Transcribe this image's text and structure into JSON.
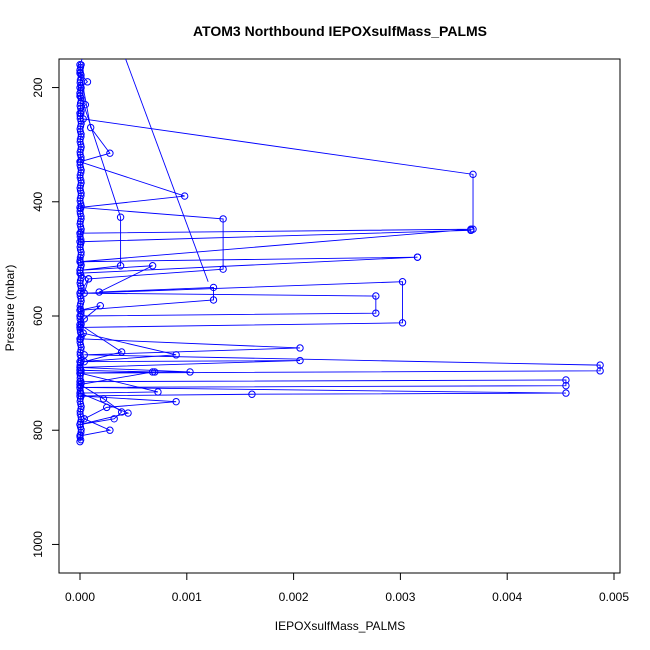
{
  "chart_data": {
    "type": "line",
    "title": "ATOM3 Northbound IEPOXsulfMass_PALMS",
    "xlabel": "IEPOXsulfMass_PALMS",
    "ylabel": "Pressure (mbar)",
    "xlim": [
      0,
      0.005
    ],
    "ylim": [
      150,
      1050
    ],
    "y_reversed": true,
    "x_ticks": [
      0.0,
      0.001,
      0.002,
      0.003,
      0.004,
      0.005
    ],
    "x_tick_labels": [
      "0.000",
      "0.001",
      "0.002",
      "0.003",
      "0.004",
      "0.005"
    ],
    "y_ticks": [
      200,
      400,
      600,
      800,
      1000
    ],
    "y_tick_labels": [
      "200",
      "400",
      "600",
      "800",
      "1000"
    ],
    "grid": false,
    "series": [
      {
        "color": "#0000ff",
        "marker": "open-circle",
        "points": [
          [
            0.0001,
            110
          ],
          [
            0,
            160
          ],
          [
            0,
            175
          ],
          [
            7e-05,
            190
          ],
          [
            0,
            200
          ],
          [
            0,
            215
          ],
          [
            5e-05,
            230
          ],
          [
            0,
            245
          ],
          [
            3e-05,
            255
          ],
          [
            0.00368,
            352
          ],
          [
            0.00368,
            448
          ],
          [
            0,
            455
          ],
          [
            0,
            470
          ],
          [
            0.00366,
            450
          ],
          [
            0.00366,
            448
          ],
          [
            0,
            505
          ],
          [
            0.00316,
            497
          ],
          [
            0.00316,
            497
          ],
          [
            0,
            525
          ],
          [
            8e-05,
            535
          ],
          [
            4e-05,
            560
          ],
          [
            0.00302,
            540
          ],
          [
            0.00302,
            612
          ],
          [
            0,
            620
          ],
          [
            0,
            640
          ],
          [
            0.00206,
            656
          ],
          [
            4e-05,
            668
          ],
          [
            0.00487,
            686
          ],
          [
            0.00487,
            696
          ],
          [
            0,
            700
          ],
          [
            0,
            715
          ],
          [
            0.00455,
            712
          ],
          [
            0.00455,
            722
          ],
          [
            0,
            725
          ],
          [
            0.00455,
            735
          ],
          [
            0.00161,
            737
          ],
          [
            0,
            740
          ],
          [
            0.0009,
            750
          ],
          [
            0.00025,
            760
          ],
          [
            4e-05,
            780
          ],
          [
            0.00028,
            800
          ],
          [
            0,
            810
          ],
          [
            0,
            820
          ]
        ]
      },
      {
        "color": "#0000ff",
        "marker": "open-circle",
        "points": [
          [
            0,
            170
          ],
          [
            0.0001,
            270
          ],
          [
            0.00028,
            315
          ],
          [
            0,
            330
          ],
          [
            0.00098,
            390
          ],
          [
            0,
            410
          ],
          [
            0.00134,
            430
          ],
          [
            0.00134,
            518
          ],
          [
            8e-05,
            535
          ],
          [
            0,
            560
          ],
          [
            0.00277,
            565
          ],
          [
            0.00277,
            595
          ],
          [
            0,
            600
          ],
          [
            0,
            615
          ],
          [
            3e-05,
            630
          ],
          [
            0.0009,
            668
          ],
          [
            0,
            680
          ],
          [
            0.00206,
            678
          ],
          [
            0,
            690
          ],
          [
            0.00103,
            698
          ],
          [
            0.0007,
            698
          ],
          [
            0,
            700
          ],
          [
            0.00073,
            733
          ],
          [
            0,
            735
          ],
          [
            0.00045,
            770
          ],
          [
            0,
            790
          ]
        ]
      },
      {
        "color": "#0000ff",
        "marker": "open-circle",
        "points": [
          [
            0,
            210
          ],
          [
            0.00038,
            427
          ],
          [
            0.00038,
            512
          ],
          [
            0,
            520
          ],
          [
            0.00068,
            512
          ],
          [
            0.00018,
            558
          ],
          [
            0.00125,
            550
          ],
          [
            0.00125,
            572
          ],
          [
            0,
            590
          ],
          [
            0.00019,
            582
          ],
          [
            4e-05,
            605
          ],
          [
            0,
            615
          ],
          [
            0.00039,
            663
          ],
          [
            4e-05,
            680
          ],
          [
            0,
            695
          ],
          [
            0.00068,
            698
          ],
          [
            0,
            720
          ],
          [
            0.00022,
            745
          ],
          [
            0.00039,
            768
          ],
          [
            0.00032,
            780
          ],
          [
            0,
            790
          ]
        ]
      }
    ],
    "strays": [
      [
        8e-05,
        150
      ],
      [
        0.0012,
        540
      ]
    ]
  }
}
